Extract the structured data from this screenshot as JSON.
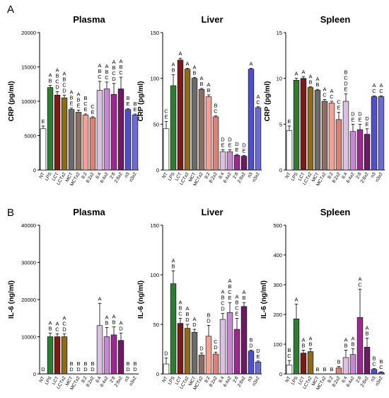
{
  "categories": [
    "NT",
    "LPS",
    "LCT",
    "LCTx2",
    "MCT",
    "MCTx2",
    "8:2",
    "8:2x2",
    "6:4",
    "6:4x2",
    "2:8",
    "2:8x2",
    "n3",
    "n3x2"
  ],
  "colors": [
    "#ffffff",
    "#2e7d32",
    "#7b1a1a",
    "#8c6a1e",
    "#6b6b6b",
    "#8d6e63",
    "#f3a098",
    "#d88378",
    "#d9c2df",
    "#c489d1",
    "#9c2a8e",
    "#6a1b62",
    "#4f4fc8",
    "#6b6bd6"
  ],
  "panel_labels": [
    "A",
    "B"
  ],
  "chart_data": [
    {
      "type": "bar",
      "row": 0,
      "col": 0,
      "title": "Plasma",
      "ylabel": "CRP (pg/ml)",
      "ylim": [
        0,
        20000
      ],
      "yticks": [
        0,
        5000,
        10000,
        15000,
        20000
      ],
      "values": [
        6000,
        12000,
        10900,
        10500,
        8800,
        8400,
        8000,
        7600,
        11600,
        11800,
        11000,
        11800,
        8800,
        8000
      ],
      "errors": [
        400,
        300,
        500,
        400,
        200,
        300,
        150,
        150,
        1300,
        1000,
        1600,
        1700,
        150,
        150
      ],
      "letters": [
        "E",
        "A\nB",
        "A\nB\nC\nD",
        "A\nB\nC\nD",
        "A\nB\nE",
        "A\nB\nE",
        "B\nC\nE",
        "C\nE",
        "A\nB\nC",
        "A\nB\nC",
        "A\nB\nC\nD",
        "A\nB\nC",
        "B\nE",
        "B\nE"
      ]
    },
    {
      "type": "bar",
      "row": 0,
      "col": 1,
      "title": "Liver",
      "ylabel": "CRP (pg/ml)",
      "ylim": [
        0,
        150
      ],
      "yticks": [
        0,
        50,
        100,
        150
      ],
      "values": [
        45,
        92,
        120,
        110,
        100,
        88,
        80,
        58,
        20,
        20,
        16,
        15,
        110,
        68
      ],
      "errors": [
        8,
        12,
        2,
        1,
        1,
        1,
        2,
        1,
        2,
        2,
        1,
        1,
        1,
        1
      ],
      "letters": [
        "C\nE",
        "A\nB",
        "A",
        "A",
        "A\nB",
        "A\nB",
        "A\nB",
        "B\nC",
        "D\nE",
        "D\nE",
        "D\nE",
        "D\nE",
        "A",
        "A\nC"
      ]
    },
    {
      "type": "bar",
      "row": 0,
      "col": 2,
      "title": "Spleen",
      "ylabel": "CRP (pg/ml)",
      "ylim": [
        0,
        15
      ],
      "yticks": [
        0,
        5,
        10,
        15
      ],
      "values": [
        4.3,
        9.8,
        10.0,
        9.0,
        8.7,
        7.5,
        7.3,
        5.5,
        7.5,
        4.2,
        4.4,
        3.9,
        8.0,
        8.0
      ],
      "errors": [
        0.5,
        0.2,
        0.2,
        0.1,
        0.1,
        0.2,
        0.2,
        0.8,
        0.8,
        0.8,
        0.6,
        0.6,
        0.1,
        0.1
      ],
      "letters": [
        "E",
        "A",
        "A",
        "A\nB",
        "A\nB",
        "A\nC",
        "A\nC",
        "C\nE",
        "B\nC\nD\nE",
        "D\nE",
        "D\nE",
        "D\nE",
        "A\nC",
        "A\nC"
      ]
    },
    {
      "type": "bar",
      "row": 1,
      "col": 0,
      "title": "Plasma",
      "ylabel": "IL-6 (ng/ml)",
      "ylim": [
        0,
        40000
      ],
      "yticks": [
        0,
        10000,
        20000,
        30000,
        40000
      ],
      "values": [
        0,
        10000,
        10000,
        10000,
        0,
        0,
        0,
        0,
        13000,
        10000,
        10500,
        9000,
        0,
        0
      ],
      "errors": [
        0,
        1000,
        800,
        800,
        0,
        0,
        0,
        0,
        6000,
        2500,
        2200,
        2000,
        0,
        0
      ],
      "letters": [
        "D",
        "A\nB",
        "A\nC",
        "A\nC\nD",
        "B\nD",
        "B\nD",
        "B\nD",
        "B\nD",
        "A",
        "A\nB",
        "A\nB",
        "A\nD",
        "B\nD",
        "B\nD"
      ]
    },
    {
      "type": "bar",
      "row": 1,
      "col": 1,
      "title": "Liver",
      "ylabel": "IL-6 (ng/ml)",
      "ylim": [
        0,
        150
      ],
      "yticks": [
        0,
        50,
        100,
        150
      ],
      "values": [
        10,
        91,
        51,
        46,
        42,
        19,
        38,
        20,
        55,
        62,
        45,
        68,
        23,
        12
      ],
      "errors": [
        6,
        13,
        5,
        4,
        3,
        2,
        11,
        2,
        6,
        10,
        11,
        4,
        1,
        1
      ],
      "letters": [
        "D",
        "A\nB",
        "A\nB\nC",
        "A\nB\nD",
        "A\nD",
        "D",
        "B\nD",
        "C\nD",
        "A\nB\nC\nD",
        "A\nB\nC\nE",
        "A\nB\nC\nE",
        "A\nB",
        "B\nD",
        "D\nE"
      ]
    },
    {
      "type": "bar",
      "row": 1,
      "col": 2,
      "title": "Spleen",
      "ylabel": "IL-6 (ng/ml)",
      "ylim": [
        0,
        500
      ],
      "yticks": [
        0,
        100,
        200,
        300,
        400,
        500
      ],
      "values": [
        30,
        185,
        70,
        75,
        0,
        0,
        0,
        20,
        55,
        65,
        190,
        90,
        15,
        5
      ],
      "errors": [
        15,
        50,
        10,
        10,
        0,
        0,
        0,
        5,
        25,
        20,
        95,
        30,
        3,
        2
      ],
      "letters": [
        "B\nC",
        "A",
        "A\nB",
        "A\nB",
        "B",
        "B",
        "B",
        "B",
        "A\nB",
        "A\nB",
        "A\nC",
        "A\nB",
        "B\nC",
        "B\nC"
      ]
    }
  ]
}
